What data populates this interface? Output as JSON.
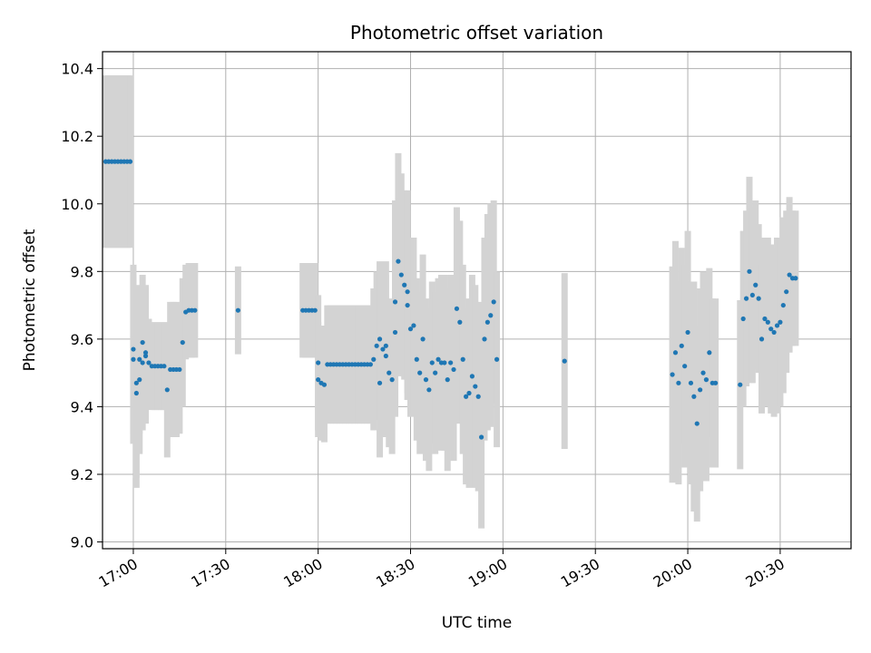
{
  "chart_data": {
    "type": "scatter",
    "title": "Photometric offset variation",
    "xlabel": "UTC time",
    "ylabel": "Photometric offset",
    "x_is_time": true,
    "xlim": [
      "16:50",
      "20:53"
    ],
    "ylim": [
      8.98,
      10.45
    ],
    "grid": true,
    "x_ticks": [
      "17:00",
      "17:30",
      "18:00",
      "18:30",
      "19:00",
      "19:30",
      "20:00",
      "20:30"
    ],
    "y_ticks": [
      "9.0",
      "9.2",
      "9.4",
      "9.6",
      "9.8",
      "10.0",
      "10.2",
      "10.4"
    ],
    "y_tick_values": [
      9.0,
      9.2,
      9.4,
      9.6,
      9.8,
      10.0,
      10.2,
      10.4
    ],
    "colors": {
      "points": "#1f77b4",
      "error_bars": "#d3d3d3",
      "grid": "#b0b0b0"
    },
    "series": [
      {
        "x": [
          "16:51",
          "16:52",
          "16:53",
          "16:54",
          "16:55",
          "16:56",
          "16:57",
          "16:58",
          "16:59",
          "17:00",
          "17:00",
          "17:01",
          "17:01",
          "17:02",
          "17:02",
          "17:03",
          "17:03",
          "17:04",
          "17:04",
          "17:05",
          "17:06",
          "17:07",
          "17:08",
          "17:09",
          "17:10",
          "17:11",
          "17:12",
          "17:13",
          "17:14",
          "17:15",
          "17:16",
          "17:17",
          "17:18",
          "17:19",
          "17:20",
          "17:34",
          "17:55",
          "17:56",
          "17:57",
          "17:58",
          "17:59",
          "18:00",
          "18:00",
          "18:01",
          "18:02",
          "18:03",
          "18:04",
          "18:05",
          "18:06",
          "18:07",
          "18:08",
          "18:09",
          "18:10",
          "18:11",
          "18:12",
          "18:13",
          "18:14",
          "18:15",
          "18:16",
          "18:17",
          "18:18",
          "18:19",
          "18:20",
          "18:20",
          "18:21",
          "18:22",
          "18:22",
          "18:23",
          "18:24",
          "18:25",
          "18:25",
          "18:26",
          "18:27",
          "18:28",
          "18:29",
          "18:29",
          "18:30",
          "18:31",
          "18:32",
          "18:33",
          "18:34",
          "18:35",
          "18:36",
          "18:37",
          "18:38",
          "18:39",
          "18:40",
          "18:41",
          "18:42",
          "18:43",
          "18:44",
          "18:45",
          "18:46",
          "18:47",
          "18:48",
          "18:49",
          "18:50",
          "18:51",
          "18:52",
          "18:53",
          "18:54",
          "18:55",
          "18:56",
          "18:57",
          "18:58",
          "19:20",
          "19:55",
          "19:56",
          "19:57",
          "19:58",
          "19:59",
          "20:00",
          "20:01",
          "20:02",
          "20:03",
          "20:04",
          "20:05",
          "20:06",
          "20:07",
          "20:08",
          "20:09",
          "20:17",
          "20:18",
          "20:19",
          "20:20",
          "20:21",
          "20:22",
          "20:23",
          "20:24",
          "20:25",
          "20:26",
          "20:27",
          "20:28",
          "20:29",
          "20:30",
          "20:31",
          "20:32",
          "20:33",
          "20:34",
          "20:35"
        ],
        "y": [
          10.125,
          10.125,
          10.125,
          10.125,
          10.125,
          10.125,
          10.125,
          10.125,
          10.125,
          9.57,
          9.54,
          9.47,
          9.44,
          9.48,
          9.54,
          9.53,
          9.59,
          9.56,
          9.55,
          9.53,
          9.52,
          9.52,
          9.52,
          9.52,
          9.52,
          9.45,
          9.51,
          9.51,
          9.51,
          9.51,
          9.59,
          9.68,
          9.685,
          9.685,
          9.685,
          9.685,
          9.685,
          9.685,
          9.685,
          9.685,
          9.685,
          9.53,
          9.48,
          9.47,
          9.465,
          9.525,
          9.525,
          9.525,
          9.525,
          9.525,
          9.525,
          9.525,
          9.525,
          9.525,
          9.525,
          9.525,
          9.525,
          9.525,
          9.525,
          9.525,
          9.54,
          9.58,
          9.6,
          9.47,
          9.57,
          9.55,
          9.58,
          9.5,
          9.48,
          9.62,
          9.71,
          9.83,
          9.79,
          9.76,
          9.74,
          9.7,
          9.63,
          9.64,
          9.54,
          9.5,
          9.6,
          9.48,
          9.45,
          9.53,
          9.5,
          9.54,
          9.53,
          9.53,
          9.48,
          9.53,
          9.51,
          9.69,
          9.65,
          9.54,
          9.43,
          9.44,
          9.49,
          9.46,
          9.43,
          9.31,
          9.6,
          9.65,
          9.67,
          9.71,
          9.54,
          9.535,
          9.495,
          9.56,
          9.47,
          9.58,
          9.52,
          9.62,
          9.47,
          9.43,
          9.35,
          9.45,
          9.5,
          9.48,
          9.56,
          9.47,
          9.47,
          9.465,
          9.66,
          9.72,
          9.8,
          9.73,
          9.76,
          9.72,
          9.6,
          9.66,
          9.65,
          9.63,
          9.62,
          9.64,
          9.65,
          9.7,
          9.74,
          9.79,
          9.78,
          9.78
        ],
        "err": [
          0.255,
          0.255,
          0.255,
          0.255,
          0.255,
          0.255,
          0.255,
          0.255,
          0.255,
          0.25,
          0.25,
          0.28,
          0.28,
          0.22,
          0.22,
          0.2,
          0.2,
          0.2,
          0.2,
          0.13,
          0.13,
          0.13,
          0.13,
          0.13,
          0.13,
          0.2,
          0.2,
          0.2,
          0.2,
          0.19,
          0.19,
          0.14,
          0.14,
          0.14,
          0.14,
          0.13,
          0.14,
          0.14,
          0.14,
          0.14,
          0.14,
          0.2,
          0.17,
          0.17,
          0.17,
          0.175,
          0.175,
          0.175,
          0.175,
          0.175,
          0.175,
          0.175,
          0.175,
          0.175,
          0.175,
          0.175,
          0.175,
          0.175,
          0.175,
          0.175,
          0.21,
          0.22,
          0.23,
          0.22,
          0.24,
          0.24,
          0.25,
          0.22,
          0.22,
          0.25,
          0.3,
          0.32,
          0.3,
          0.28,
          0.3,
          0.28,
          0.26,
          0.26,
          0.24,
          0.24,
          0.25,
          0.24,
          0.24,
          0.24,
          0.24,
          0.24,
          0.26,
          0.26,
          0.27,
          0.26,
          0.27,
          0.3,
          0.3,
          0.28,
          0.26,
          0.28,
          0.3,
          0.3,
          0.28,
          0.27,
          0.3,
          0.32,
          0.33,
          0.3,
          0.26,
          0.26,
          0.32,
          0.33,
          0.3,
          0.29,
          0.3,
          0.3,
          0.3,
          0.34,
          0.29,
          0.3,
          0.3,
          0.3,
          0.25,
          0.25,
          0.25,
          0.25,
          0.26,
          0.26,
          0.28,
          0.26,
          0.25,
          0.22,
          0.22,
          0.24,
          0.25,
          0.25,
          0.25,
          0.26,
          0.25,
          0.26,
          0.24,
          0.23,
          0.2,
          0.2
        ]
      }
    ]
  }
}
